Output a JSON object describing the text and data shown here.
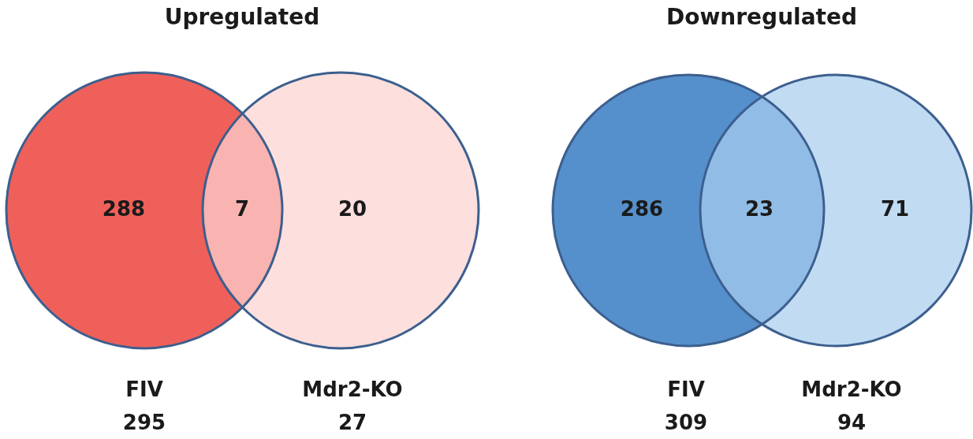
{
  "chart_data": [
    {
      "type": "other",
      "title": "Upregulated",
      "categories": [
        "FIV",
        "Mdr2-KO"
      ],
      "values": [
        295,
        27
      ],
      "colors": [
        "#f0605a",
        "#fcd3d1"
      ],
      "annotations": [
        "288",
        "7",
        "20"
      ],
      "data_labels": true
    },
    {
      "type": "other",
      "title": "Downregulated",
      "categories": [
        "FIV",
        "Mdr2-KO"
      ],
      "values": [
        309,
        94
      ],
      "colors": [
        "#5590cc",
        "#a9cdee"
      ],
      "annotations": [
        "286",
        "23",
        "71"
      ],
      "data_labels": true
    }
  ]
}
